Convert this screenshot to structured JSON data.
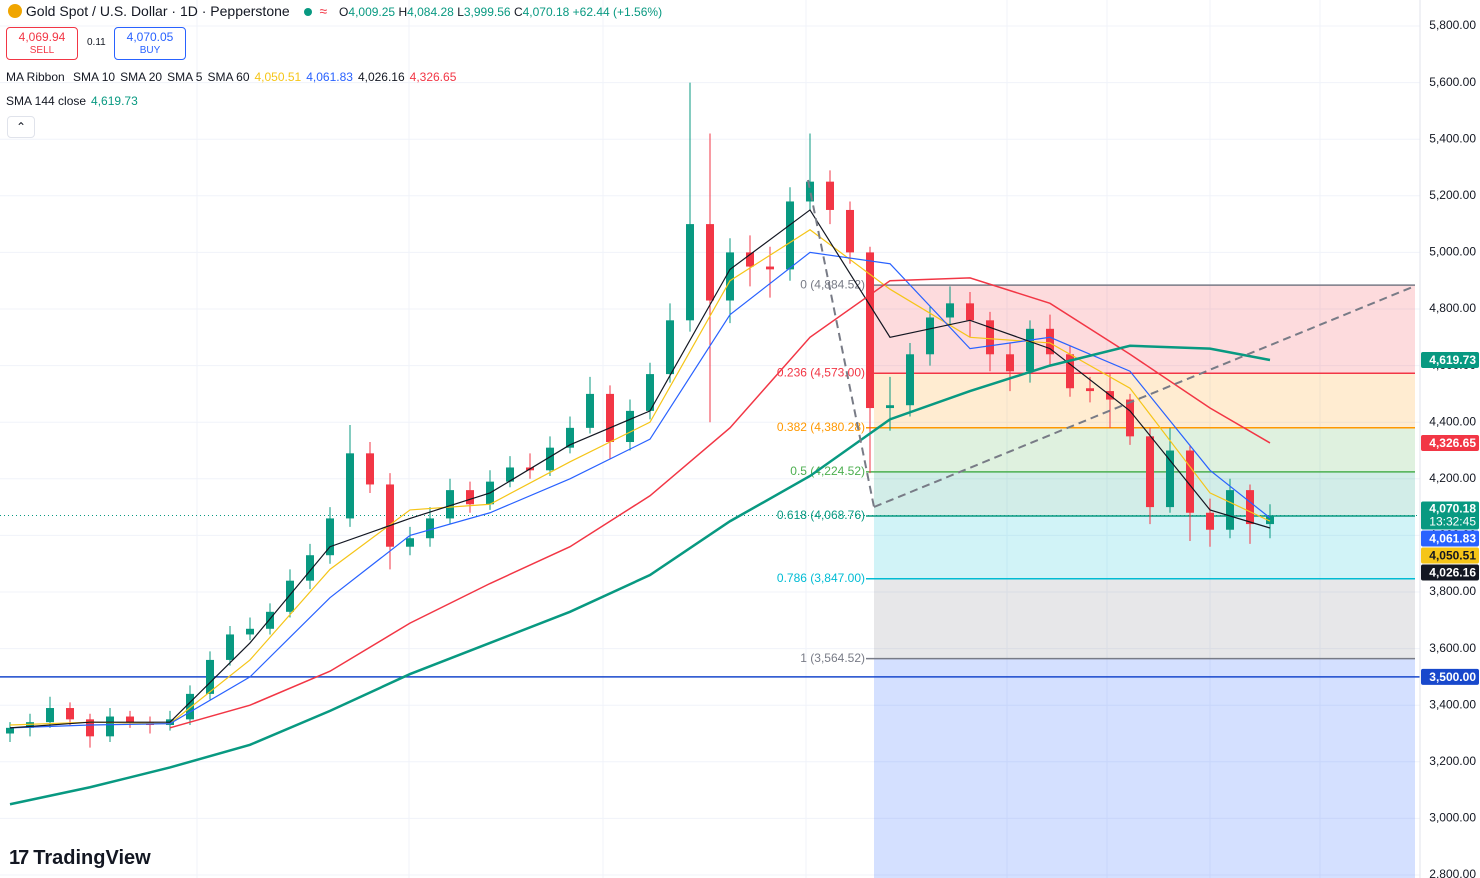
{
  "header": {
    "symbol": "Gold Spot / U.S. Dollar · 1D · Pepperstone",
    "open_label": "O",
    "open": "4,009.25",
    "high_label": "H",
    "high": "4,084.28",
    "low_label": "L",
    "low": "3,999.56",
    "close_label": "C",
    "close": "4,070.18",
    "change": "+62.44 (+1.56%)",
    "sell_price": "4,069.94",
    "sell": "SELL",
    "spread": "0.11",
    "buy_price": "4,070.05",
    "buy": "BUY",
    "ribbon": "MA Ribbon",
    "logo": "TradingView"
  },
  "chart_data": {
    "type": "candlestick",
    "ylim": [
      2800,
      5800
    ],
    "yticks": [
      {
        "value": 5800,
        "label": "5,800.00"
      },
      {
        "value": 5600,
        "label": "5,600.00"
      },
      {
        "value": 5400,
        "label": "5,400.00"
      },
      {
        "value": 5200,
        "label": "5,200.00"
      },
      {
        "value": 5000,
        "label": "5,000.00"
      },
      {
        "value": 4800,
        "label": "4,800.00"
      },
      {
        "value": 4600,
        "label": "4,600.00"
      },
      {
        "value": 4400,
        "label": "4,400.00"
      },
      {
        "value": 4200,
        "label": "4,200.00"
      },
      {
        "value": 4000,
        "label": "4,000.00"
      },
      {
        "value": 3800,
        "label": "3,800.00"
      },
      {
        "value": 3600,
        "label": "3,600.00"
      },
      {
        "value": 3400,
        "label": "3,400.00"
      },
      {
        "value": 3200,
        "label": "3,200.00"
      },
      {
        "value": 3000,
        "label": "3,000.00"
      },
      {
        "value": 2800,
        "label": "2,800.00"
      }
    ],
    "grid": true,
    "up_color": "#089981",
    "down_color": "#f23645",
    "open": [
      3300,
      3320,
      3340,
      3390,
      3350,
      3290,
      3360,
      3340,
      3330,
      3350,
      3440,
      3560,
      3650,
      3670,
      3730,
      3840,
      3930,
      4060,
      4290,
      4180,
      3960,
      3990,
      4060,
      4160,
      4110,
      4190,
      4240,
      4230,
      4310,
      4380,
      4500,
      4330,
      4440,
      4570,
      4760,
      5100,
      4830,
      5000,
      4950,
      4940,
      5180,
      5250,
      5150,
      5000,
      4450,
      4460,
      4640,
      4770,
      4820,
      4760,
      4640,
      4580,
      4730,
      4640,
      4520,
      4510,
      4480,
      4350,
      4100,
      4300,
      4080,
      4020,
      4160,
      4040
    ],
    "high": [
      3340,
      3370,
      3430,
      3410,
      3370,
      3390,
      3380,
      3360,
      3380,
      3470,
      3590,
      3680,
      3710,
      3760,
      3880,
      3970,
      4100,
      4390,
      4330,
      4220,
      4030,
      4100,
      4200,
      4190,
      4230,
      4280,
      4290,
      4350,
      4420,
      4560,
      4530,
      4480,
      4610,
      4820,
      5600,
      5420,
      5050,
      5060,
      5020,
      5230,
      5420,
      5290,
      5180,
      5020,
      4560,
      4680,
      4810,
      4880,
      4860,
      4790,
      4680,
      4760,
      4780,
      4670,
      4560,
      4570,
      4500,
      4380,
      4380,
      4320,
      4130,
      4200,
      4180,
      4110
    ],
    "low": [
      3270,
      3290,
      3320,
      3330,
      3250,
      3270,
      3320,
      3300,
      3310,
      3330,
      3420,
      3540,
      3630,
      3650,
      3710,
      3810,
      3900,
      4030,
      4150,
      3880,
      3930,
      3960,
      4040,
      4080,
      4090,
      4170,
      4200,
      4210,
      4290,
      4360,
      4270,
      4300,
      4410,
      4540,
      4720,
      4400,
      4750,
      4880,
      4840,
      4900,
      5150,
      5100,
      4960,
      4220,
      4370,
      4420,
      4600,
      4740,
      4700,
      4580,
      4510,
      4540,
      4600,
      4490,
      4470,
      4380,
      4320,
      4040,
      4080,
      3980,
      3960,
      3990,
      3970,
      3990
    ],
    "close": [
      3320,
      3340,
      3390,
      3350,
      3290,
      3360,
      3340,
      3330,
      3350,
      3440,
      3560,
      3650,
      3670,
      3730,
      3840,
      3930,
      4060,
      4290,
      4180,
      3960,
      3990,
      4060,
      4160,
      4110,
      4190,
      4240,
      4230,
      4310,
      4380,
      4500,
      4330,
      4440,
      4570,
      4760,
      5100,
      4830,
      5000,
      4950,
      4940,
      5180,
      5250,
      5150,
      5000,
      4450,
      4460,
      4640,
      4770,
      4820,
      4760,
      4640,
      4580,
      4730,
      4640,
      4520,
      4510,
      4480,
      4350,
      4100,
      4300,
      4080,
      4020,
      4160,
      4040,
      4070
    ],
    "last_price": {
      "value": 4070.18,
      "label": "4,070.18",
      "countdown": "13:32:45",
      "color": "#089981"
    },
    "ma_x": [
      0,
      4,
      8,
      12,
      16,
      20,
      24,
      28,
      32,
      36,
      40,
      44,
      48,
      52,
      56,
      60,
      63
    ],
    "series": [
      {
        "name": "SMA 10",
        "color": "#f5c518",
        "text_color": "#131722",
        "values": [
          3330,
          3340,
          3335,
          3560,
          3880,
          4090,
          4110,
          4260,
          4400,
          4900,
          5080,
          4870,
          4700,
          4680,
          4520,
          4150,
          4050.51
        ],
        "last_label": "4,050.51"
      },
      {
        "name": "SMA 20",
        "color": "#2962ff",
        "text_color": "#ffffff",
        "values": [
          3320,
          3330,
          3335,
          3500,
          3780,
          4000,
          4080,
          4200,
          4340,
          4780,
          5000,
          4960,
          4660,
          4700,
          4580,
          4230,
          4061.83
        ],
        "last_label": "4,061.83"
      },
      {
        "name": "SMA 5",
        "color": "#131722",
        "text_color": "#ffffff",
        "values": [
          3320,
          3340,
          3340,
          3620,
          3960,
          4060,
          4150,
          4320,
          4440,
          4940,
          5150,
          4700,
          4760,
          4660,
          4440,
          4090,
          4026.16
        ],
        "last_label": "4,026.16"
      },
      {
        "name": "SMA 60",
        "color": "#f23645",
        "text_color": "#ffffff",
        "values": [
          null,
          null,
          3320,
          3400,
          3520,
          3690,
          3830,
          3960,
          4140,
          4380,
          4700,
          4900,
          4910,
          4820,
          4640,
          4450,
          4326.65
        ],
        "last_label": "4,326.65"
      },
      {
        "name": "SMA 144 close",
        "color": "#089981",
        "text_color": "#ffffff",
        "values": [
          3050,
          3110,
          3180,
          3260,
          3380,
          3510,
          3620,
          3730,
          3860,
          4050,
          4210,
          4410,
          4510,
          4600,
          4670,
          4660,
          4619.73
        ],
        "last_label": "4,619.73"
      }
    ],
    "hline": {
      "value": 3500,
      "label": "3,500.00",
      "color": "#1848cc"
    },
    "fib": {
      "levels": [
        {
          "value": 4884.52,
          "label": "0 (4,884.52)",
          "color": "#787b86"
        },
        {
          "value": 4573.0,
          "label": "0.236 (4,573.00)",
          "color": "#f23645"
        },
        {
          "value": 4380.28,
          "label": "0.382 (4,380.28)",
          "color": "#ff9800"
        },
        {
          "value": 4224.52,
          "label": "0.5 (4,224.52)",
          "color": "#4caf50"
        },
        {
          "value": 4068.76,
          "label": "0.618 (4,068.76)",
          "color": "#089981"
        },
        {
          "value": 3847.0,
          "label": "0.786 (3,847.00)",
          "color": "#00bcd4"
        },
        {
          "value": 3564.52,
          "label": "1 (3,564.52)",
          "color": "#787b86"
        }
      ],
      "below_color": "#2962ff"
    }
  }
}
